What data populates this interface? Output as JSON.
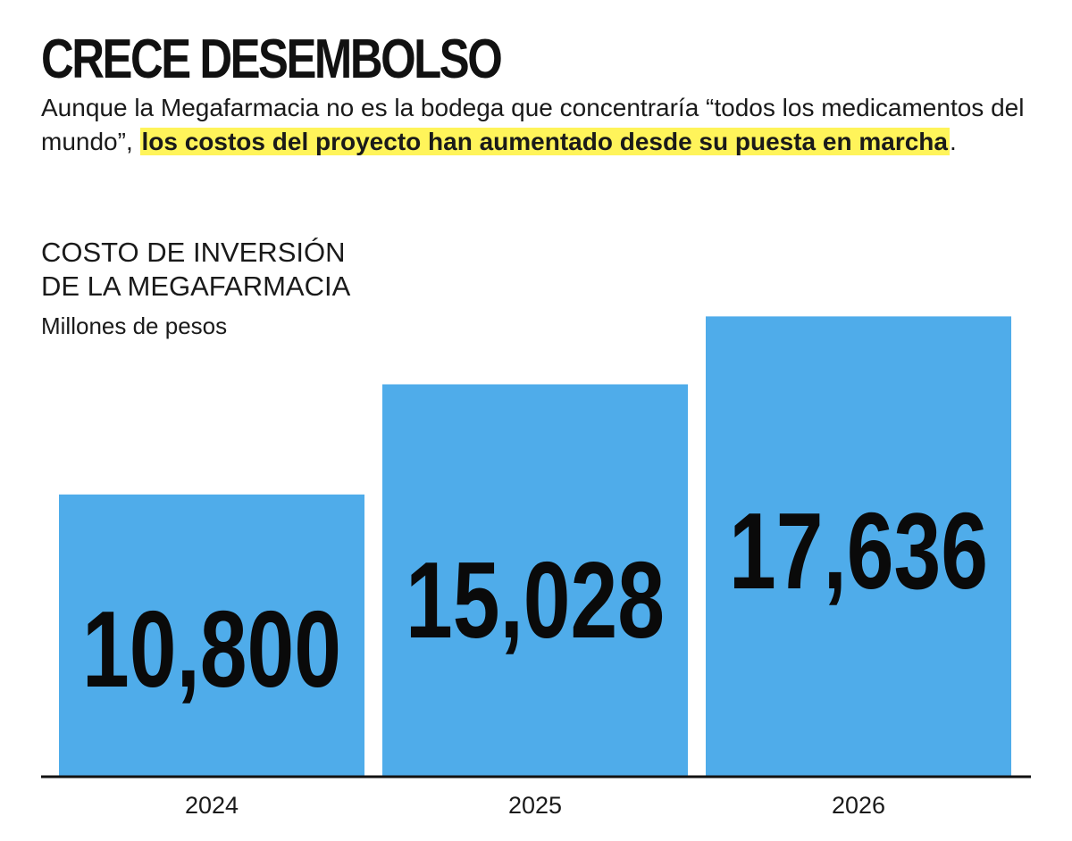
{
  "headline": "CRECE DESEMBOLSO",
  "dek": {
    "plain": "Aunque la Megafarmacia no es la bodega que concentraría “todos los medicamentos del mundo”, ",
    "highlight": "los costos del proyecto han aumentado desde su puesta en marcha",
    "end": "."
  },
  "colors": {
    "bar": "#4facea",
    "highlight": "#fff45a",
    "axis": "#111111"
  },
  "chart_data": {
    "type": "bar",
    "title": "COSTO DE INVERSIÓN\nDE LA MEGAFARMACIA",
    "subtitle": "Millones de pesos",
    "categories": [
      "2024",
      "2025",
      "2026"
    ],
    "values": [
      10800,
      15028,
      17636
    ],
    "value_labels": [
      "10,800",
      "15,028",
      "17,636"
    ],
    "ylim": [
      0,
      19500
    ],
    "grid": false,
    "legend": "none"
  }
}
